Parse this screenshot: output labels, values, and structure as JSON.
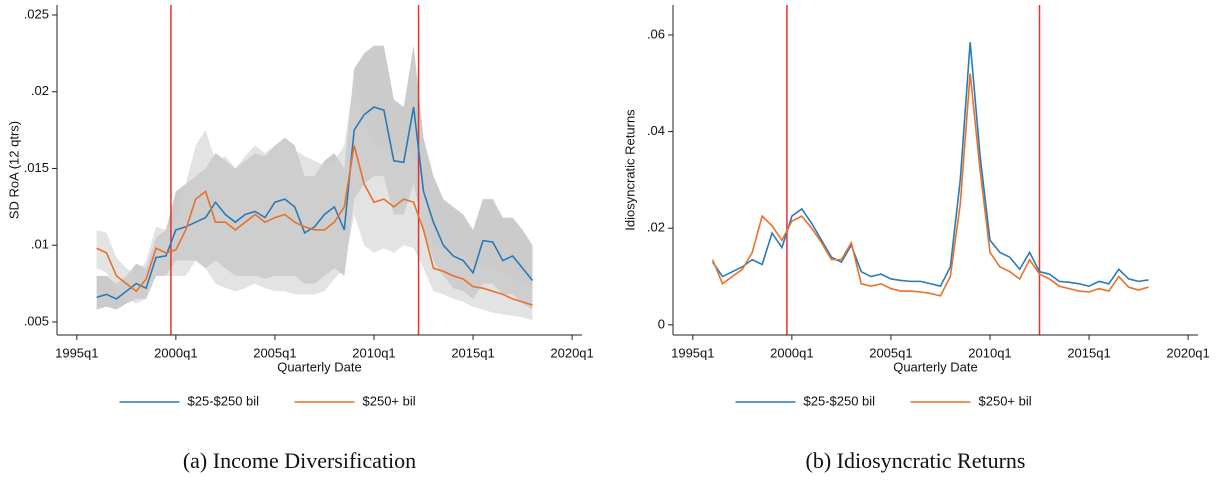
{
  "chart_data": [
    {
      "type": "line",
      "caption": "(a) Income Diversification",
      "xlabel": "Quarterly Date",
      "ylabel": "SD RoA (12 qtrs)",
      "x": [
        1996.0,
        1996.5,
        1997.0,
        1997.5,
        1998.0,
        1998.5,
        1999.0,
        1999.5,
        2000.0,
        2000.5,
        2001.0,
        2001.5,
        2002.0,
        2002.5,
        2003.0,
        2003.5,
        2004.0,
        2004.5,
        2005.0,
        2005.5,
        2006.0,
        2006.5,
        2007.0,
        2007.5,
        2008.0,
        2008.5,
        2009.0,
        2009.5,
        2010.0,
        2010.5,
        2011.0,
        2011.5,
        2012.0,
        2012.5,
        2013.0,
        2013.5,
        2014.0,
        2014.5,
        2015.0,
        2015.5,
        2016.0,
        2016.5,
        2017.0,
        2017.5,
        2018.0
      ],
      "xlim": [
        1994,
        2020.5
      ],
      "ylim": [
        0.00415,
        0.02565
      ],
      "xticks": [
        {
          "value": 1995,
          "label": "1995q1"
        },
        {
          "value": 2000,
          "label": "2000q1"
        },
        {
          "value": 2005,
          "label": "2005q1"
        },
        {
          "value": 2010,
          "label": "2010q1"
        },
        {
          "value": 2015,
          "label": "2015q1"
        },
        {
          "value": 2020,
          "label": "2020q1"
        }
      ],
      "yticks": [
        {
          "value": 0.005,
          "label": ".005"
        },
        {
          "value": 0.01,
          "label": ".01"
        },
        {
          "value": 0.015,
          "label": ".015"
        },
        {
          "value": 0.02,
          "label": ".02"
        },
        {
          "value": 0.025,
          "label": ".025"
        }
      ],
      "vlines": [
        1999.75,
        2012.25
      ],
      "vline_color": "#e8312a",
      "series": [
        {
          "name": "$25-$250 bil",
          "color": "#2a7ab8",
          "band_color": "#a9a9a9",
          "values": [
            0.0066,
            0.0068,
            0.0065,
            0.007,
            0.0075,
            0.0072,
            0.0092,
            0.0093,
            0.011,
            0.0112,
            0.0115,
            0.0118,
            0.0128,
            0.012,
            0.0115,
            0.012,
            0.0122,
            0.0118,
            0.0128,
            0.013,
            0.0125,
            0.0108,
            0.0112,
            0.012,
            0.0125,
            0.011,
            0.0175,
            0.0185,
            0.019,
            0.0188,
            0.0155,
            0.0154,
            0.019,
            0.0135,
            0.0115,
            0.01,
            0.0093,
            0.009,
            0.0082,
            0.0103,
            0.0102,
            0.009,
            0.0093,
            0.0085,
            0.0077
          ],
          "lower": [
            0.0058,
            0.006,
            0.0058,
            0.0062,
            0.0065,
            0.0065,
            0.008,
            0.008,
            0.009,
            0.009,
            0.009,
            0.0085,
            0.009,
            0.0085,
            0.008,
            0.008,
            0.008,
            0.0078,
            0.008,
            0.008,
            0.008,
            0.0075,
            0.0075,
            0.008,
            0.0085,
            0.008,
            0.013,
            0.014,
            0.0145,
            0.0145,
            0.012,
            0.012,
            0.014,
            0.011,
            0.009,
            0.008,
            0.0072,
            0.007,
            0.0065,
            0.0075,
            0.0075,
            0.0068,
            0.0068,
            0.0062,
            0.0058
          ],
          "upper": [
            0.008,
            0.008,
            0.0075,
            0.008,
            0.0088,
            0.0085,
            0.0105,
            0.011,
            0.0135,
            0.014,
            0.0145,
            0.015,
            0.016,
            0.0155,
            0.015,
            0.0155,
            0.016,
            0.0158,
            0.0165,
            0.017,
            0.0165,
            0.0145,
            0.0145,
            0.0155,
            0.016,
            0.015,
            0.0215,
            0.0225,
            0.023,
            0.023,
            0.0195,
            0.019,
            0.023,
            0.017,
            0.0145,
            0.013,
            0.0125,
            0.012,
            0.011,
            0.013,
            0.013,
            0.0118,
            0.0118,
            0.011,
            0.01
          ]
        },
        {
          "name": "$250+ bil",
          "color": "#e8722a",
          "band_color": "#d0d0d0",
          "values": [
            0.0098,
            0.0095,
            0.008,
            0.0075,
            0.007,
            0.0078,
            0.0098,
            0.0095,
            0.0097,
            0.011,
            0.013,
            0.0135,
            0.0115,
            0.0115,
            0.011,
            0.0115,
            0.012,
            0.0115,
            0.0118,
            0.012,
            0.0115,
            0.0112,
            0.011,
            0.011,
            0.0115,
            0.0125,
            0.0165,
            0.014,
            0.0128,
            0.013,
            0.0125,
            0.013,
            0.0128,
            0.011,
            0.0085,
            0.0083,
            0.008,
            0.0078,
            0.0073,
            0.0072,
            0.007,
            0.0068,
            0.0065,
            0.0063,
            0.0061
          ],
          "lower": [
            0.0085,
            0.0082,
            0.0068,
            0.0065,
            0.0062,
            0.0065,
            0.0082,
            0.008,
            0.008,
            0.008,
            0.009,
            0.0085,
            0.0075,
            0.0072,
            0.007,
            0.0072,
            0.0075,
            0.0072,
            0.007,
            0.007,
            0.0068,
            0.0068,
            0.0068,
            0.007,
            0.0078,
            0.0085,
            0.012,
            0.01,
            0.0095,
            0.0098,
            0.0095,
            0.01,
            0.0098,
            0.0085,
            0.007,
            0.0068,
            0.0065,
            0.0063,
            0.006,
            0.0058,
            0.0056,
            0.0055,
            0.0054,
            0.0053,
            0.0051
          ],
          "upper": [
            0.011,
            0.0108,
            0.0092,
            0.0085,
            0.008,
            0.009,
            0.0112,
            0.011,
            0.0115,
            0.014,
            0.0165,
            0.0175,
            0.0155,
            0.0158,
            0.015,
            0.0158,
            0.0165,
            0.016,
            0.0165,
            0.017,
            0.0162,
            0.0158,
            0.0155,
            0.0152,
            0.0155,
            0.0165,
            0.021,
            0.018,
            0.0165,
            0.0165,
            0.0158,
            0.0162,
            0.016,
            0.0138,
            0.01,
            0.0098,
            0.0095,
            0.0093,
            0.0088,
            0.0086,
            0.0085,
            0.0082,
            0.0078,
            0.0075,
            0.0072
          ]
        }
      ]
    },
    {
      "type": "line",
      "caption": "(b) Idiosyncratic Returns",
      "xlabel": "Quarterly Date",
      "ylabel": "Idiosyncratic Returns",
      "x": [
        1996.0,
        1996.5,
        1997.0,
        1997.5,
        1998.0,
        1998.5,
        1999.0,
        1999.5,
        2000.0,
        2000.5,
        2001.0,
        2001.5,
        2002.0,
        2002.5,
        2003.0,
        2003.5,
        2004.0,
        2004.5,
        2005.0,
        2005.5,
        2006.0,
        2006.5,
        2007.0,
        2007.5,
        2008.0,
        2008.5,
        2009.0,
        2009.5,
        2010.0,
        2010.5,
        2011.0,
        2011.5,
        2012.0,
        2012.5,
        2013.0,
        2013.5,
        2014.0,
        2014.5,
        2015.0,
        2015.5,
        2016.0,
        2016.5,
        2017.0,
        2017.5,
        2018.0
      ],
      "xlim": [
        1994,
        2020.5
      ],
      "ylim": [
        -0.0021,
        0.0662
      ],
      "xticks": [
        {
          "value": 1995,
          "label": "1995q1"
        },
        {
          "value": 2000,
          "label": "2000q1"
        },
        {
          "value": 2005,
          "label": "2005q1"
        },
        {
          "value": 2010,
          "label": "2010q1"
        },
        {
          "value": 2015,
          "label": "2015q1"
        },
        {
          "value": 2020,
          "label": "2020q1"
        }
      ],
      "yticks": [
        0,
        {
          "value": 0.02,
          "label": ".02"
        },
        {
          "value": 0.04,
          "label": ".04"
        },
        {
          "value": 0.06,
          "label": ".06"
        }
      ],
      "vlines": [
        1999.75,
        2012.5
      ],
      "vline_color": "#e8312a",
      "series": [
        {
          "name": "$25-$250 bil",
          "color": "#2a7ab8",
          "values": [
            0.013,
            0.01,
            0.011,
            0.012,
            0.0135,
            0.0125,
            0.019,
            0.016,
            0.0225,
            0.024,
            0.021,
            0.0175,
            0.014,
            0.013,
            0.0165,
            0.011,
            0.01,
            0.0105,
            0.0095,
            0.0092,
            0.009,
            0.009,
            0.0085,
            0.008,
            0.012,
            0.03,
            0.0585,
            0.035,
            0.0175,
            0.015,
            0.014,
            0.0115,
            0.015,
            0.011,
            0.0105,
            0.009,
            0.0088,
            0.0085,
            0.008,
            0.009,
            0.0085,
            0.0115,
            0.0095,
            0.009,
            0.0093
          ]
        },
        {
          "name": "$250+ bil",
          "color": "#e8722a",
          "values": [
            0.0135,
            0.0085,
            0.01,
            0.0115,
            0.015,
            0.0225,
            0.0205,
            0.0175,
            0.0215,
            0.0225,
            0.02,
            0.017,
            0.0135,
            0.0135,
            0.017,
            0.0085,
            0.008,
            0.0085,
            0.0075,
            0.007,
            0.007,
            0.0068,
            0.0065,
            0.006,
            0.01,
            0.025,
            0.052,
            0.032,
            0.015,
            0.012,
            0.011,
            0.0095,
            0.0135,
            0.0105,
            0.0095,
            0.008,
            0.0075,
            0.007,
            0.0068,
            0.0075,
            0.007,
            0.01,
            0.0078,
            0.0072,
            0.0078
          ]
        }
      ]
    }
  ]
}
